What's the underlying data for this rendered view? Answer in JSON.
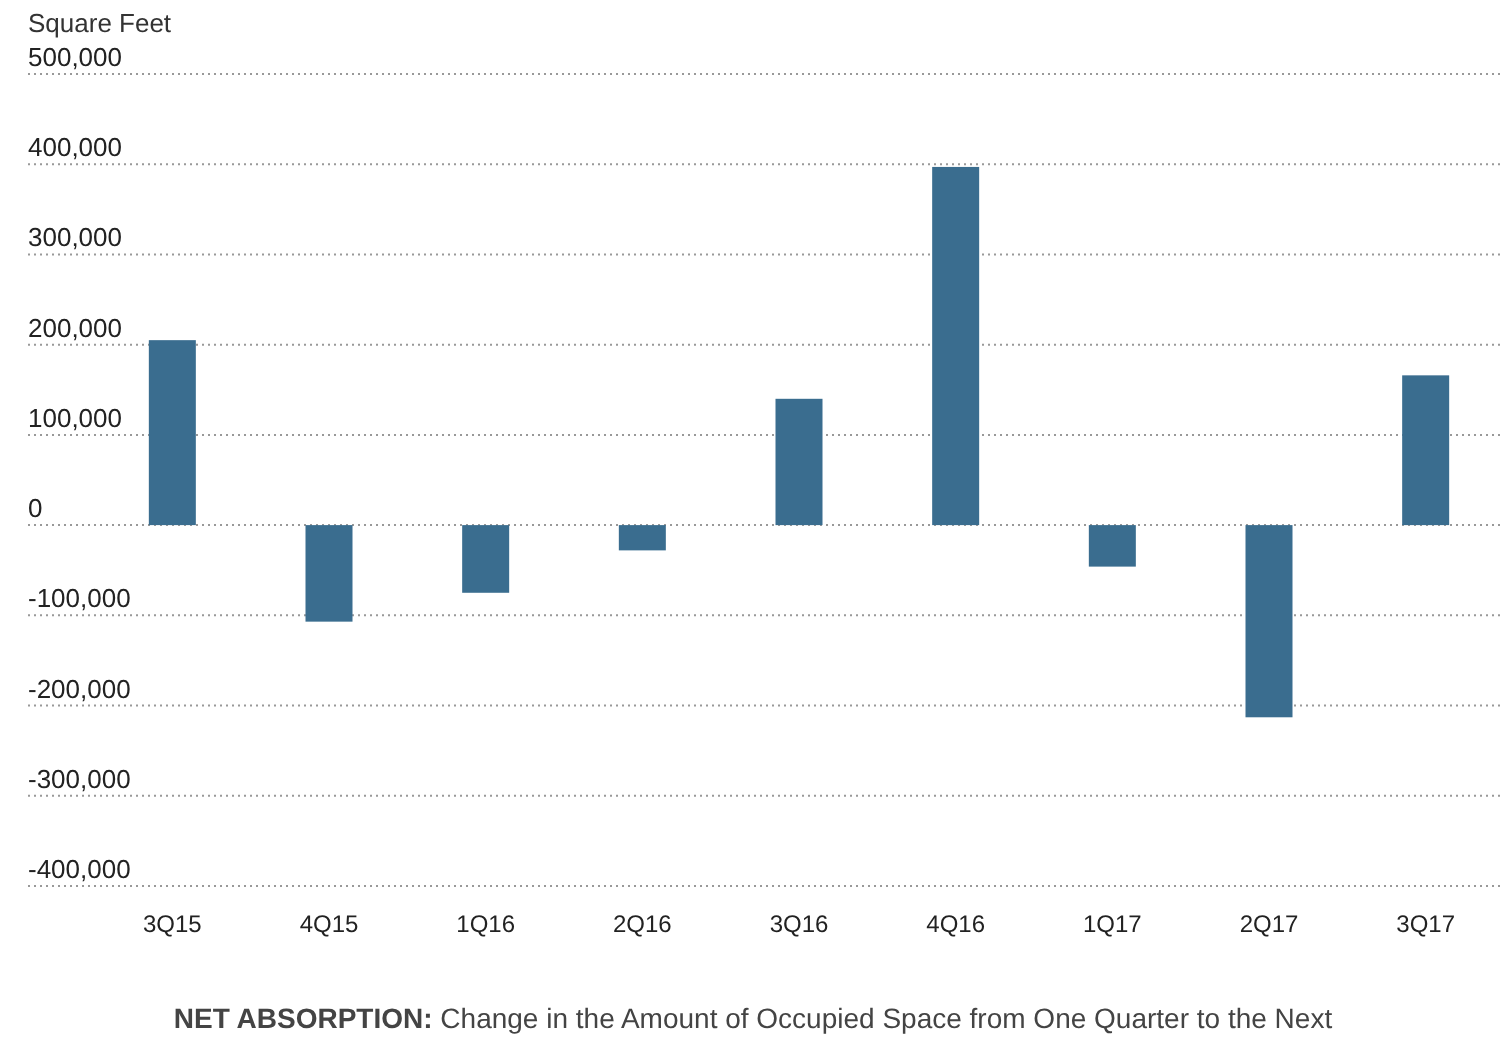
{
  "chart_data": {
    "type": "bar",
    "title": "NET ABSORPTION:",
    "subtitle": "Change in the Amount of Occupied Space from One Quarter to the Next",
    "ylabel": "Square Feet",
    "categories": [
      "3Q15",
      "4Q15",
      "1Q16",
      "2Q16",
      "3Q16",
      "4Q16",
      "1Q17",
      "2Q17",
      "3Q17"
    ],
    "values": [
      205000,
      -107000,
      -75000,
      -28000,
      140000,
      397000,
      -46000,
      -213000,
      166000
    ],
    "color": "#3a6d8f",
    "ylim": [
      -400000,
      500000
    ],
    "yticks": [
      {
        "value": -400000,
        "label": "-400,000"
      },
      {
        "value": -300000,
        "label": "-300,000"
      },
      {
        "value": -200000,
        "label": "-200,000"
      },
      {
        "value": -100000,
        "label": "-100,000"
      },
      {
        "value": 0,
        "label": "0"
      },
      {
        "value": 100000,
        "label": "100,000"
      },
      {
        "value": 200000,
        "label": "200,000"
      },
      {
        "value": 300000,
        "label": "300,000"
      },
      {
        "value": 400000,
        "label": "400,000"
      },
      {
        "value": 500000,
        "label": "500,000"
      }
    ],
    "grid": true
  }
}
